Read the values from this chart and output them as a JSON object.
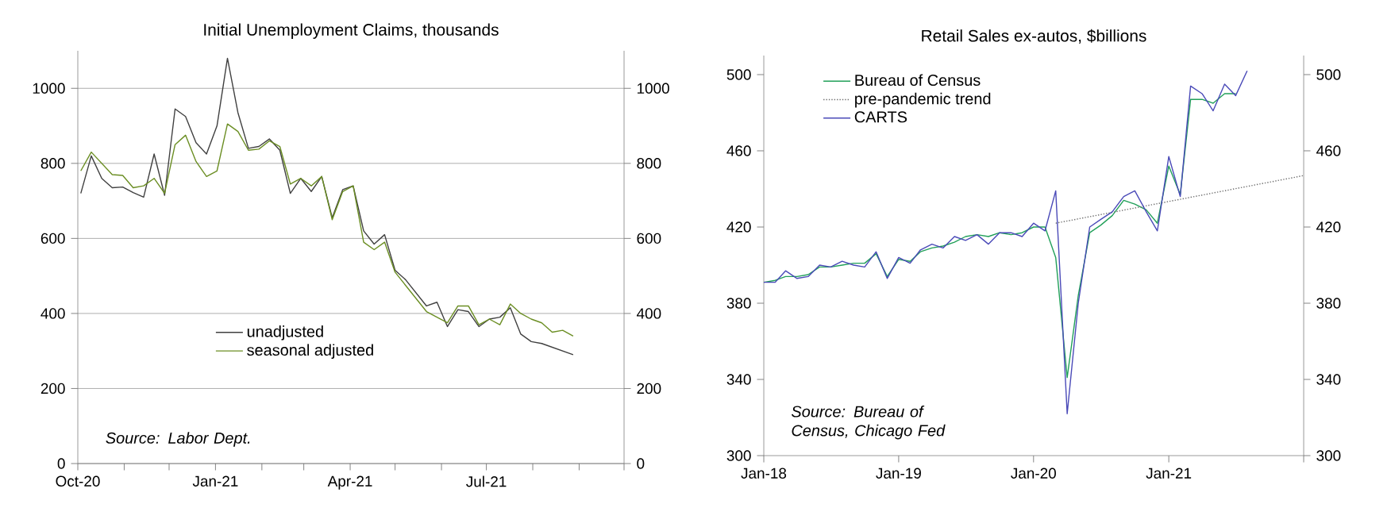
{
  "chart_data": [
    {
      "type": "line",
      "title": "Initial Unemployment Claims, thousands",
      "x": [
        "2020-10-03",
        "2020-10-10",
        "2020-10-17",
        "2020-10-24",
        "2020-10-31",
        "2020-11-07",
        "2020-11-14",
        "2020-11-21",
        "2020-11-28",
        "2020-12-05",
        "2020-12-12",
        "2020-12-19",
        "2020-12-26",
        "2021-01-02",
        "2021-01-09",
        "2021-01-16",
        "2021-01-23",
        "2021-01-30",
        "2021-02-06",
        "2021-02-13",
        "2021-02-20",
        "2021-02-27",
        "2021-03-06",
        "2021-03-13",
        "2021-03-20",
        "2021-03-27",
        "2021-04-03",
        "2021-04-10",
        "2021-04-17",
        "2021-04-24",
        "2021-05-01",
        "2021-05-08",
        "2021-05-15",
        "2021-05-22",
        "2021-05-29",
        "2021-06-05",
        "2021-06-12",
        "2021-06-19",
        "2021-06-26",
        "2021-07-03",
        "2021-07-10",
        "2021-07-17",
        "2021-07-24",
        "2021-07-31",
        "2021-08-07",
        "2021-08-14",
        "2021-08-21",
        "2021-08-28"
      ],
      "series": [
        {
          "name": "unadjusted",
          "color": "#404040",
          "values": [
            720,
            820,
            760,
            735,
            737,
            722,
            710,
            825,
            715,
            945,
            925,
            855,
            825,
            900,
            1080,
            935,
            840,
            845,
            865,
            835,
            720,
            760,
            725,
            765,
            655,
            730,
            740,
            620,
            585,
            610,
            515,
            490,
            455,
            420,
            430,
            365,
            410,
            405,
            365,
            385,
            390,
            415,
            345,
            325,
            320,
            310,
            300,
            290
          ]
        },
        {
          "name": "seasonal adjusted",
          "color": "#6b8e23",
          "values": [
            780,
            830,
            800,
            770,
            768,
            735,
            740,
            760,
            720,
            850,
            875,
            805,
            765,
            780,
            905,
            885,
            835,
            838,
            860,
            845,
            745,
            760,
            740,
            765,
            650,
            725,
            740,
            590,
            570,
            590,
            510,
            475,
            440,
            405,
            390,
            375,
            420,
            420,
            370,
            385,
            370,
            425,
            400,
            385,
            375,
            350,
            355,
            340
          ]
        }
      ],
      "xlim": [
        "2020-10-01",
        "2021-10-01"
      ],
      "xticks": [
        {
          "value": "2020-10-01",
          "label": "Oct-20"
        },
        {
          "value": "2020-11-01",
          "label": null
        },
        {
          "value": "2020-12-01",
          "label": null
        },
        {
          "value": "2021-01-01",
          "label": "Jan-21"
        },
        {
          "value": "2021-02-01",
          "label": null
        },
        {
          "value": "2021-03-01",
          "label": null
        },
        {
          "value": "2021-04-01",
          "label": "Apr-21"
        },
        {
          "value": "2021-05-01",
          "label": null
        },
        {
          "value": "2021-06-01",
          "label": null
        },
        {
          "value": "2021-07-01",
          "label": "Jul-21"
        },
        {
          "value": "2021-08-01",
          "label": null
        },
        {
          "value": "2021-09-01",
          "label": null
        },
        {
          "value": "2021-10-01",
          "label": null
        }
      ],
      "ylim": [
        0,
        1100
      ],
      "yticks": [
        0,
        200,
        400,
        600,
        800,
        1000
      ],
      "y2lim": [
        0,
        1100
      ],
      "y2ticks": [
        0,
        200,
        400,
        600,
        800,
        1000
      ],
      "grid": "y",
      "legend": "bottom",
      "marker": "none",
      "annotations": [
        "Source: Labor Dept."
      ]
    },
    {
      "type": "line",
      "title": "Retail Sales ex-autos, $billions",
      "series": [
        {
          "name": "Bureau of Census",
          "color": "#22a05a",
          "x": [
            "2018-01",
            "2018-02",
            "2018-03",
            "2018-04",
            "2018-05",
            "2018-06",
            "2018-07",
            "2018-08",
            "2018-09",
            "2018-10",
            "2018-11",
            "2018-12",
            "2019-01",
            "2019-02",
            "2019-03",
            "2019-04",
            "2019-05",
            "2019-06",
            "2019-07",
            "2019-08",
            "2019-09",
            "2019-10",
            "2019-11",
            "2019-12",
            "2020-01",
            "2020-02",
            "2020-03",
            "2020-04",
            "2020-05",
            "2020-06",
            "2020-07",
            "2020-08",
            "2020-09",
            "2020-10",
            "2020-11",
            "2020-12",
            "2021-01",
            "2021-02",
            "2021-03",
            "2021-04",
            "2021-05",
            "2021-06",
            "2021-07"
          ],
          "values": [
            391,
            392,
            394,
            394,
            395,
            399,
            399,
            400,
            401,
            401,
            406,
            394,
            403,
            402,
            407,
            409,
            410,
            412,
            415,
            416,
            415,
            417,
            416,
            417,
            420,
            420,
            404,
            341,
            384,
            417,
            421,
            426,
            434,
            432,
            429,
            422,
            452,
            437,
            487,
            487,
            485,
            490,
            490
          ]
        },
        {
          "name": "pre-pandemic trend",
          "color": "#707070",
          "line_style": "dotted",
          "x": [
            "2020-03",
            "2022-01"
          ],
          "values": [
            422,
            447
          ]
        },
        {
          "name": "CARTS",
          "color": "#4a4ab8",
          "x": [
            "2018-01",
            "2018-02",
            "2018-03",
            "2018-04",
            "2018-05",
            "2018-06",
            "2018-07",
            "2018-08",
            "2018-09",
            "2018-10",
            "2018-11",
            "2018-12",
            "2019-01",
            "2019-02",
            "2019-03",
            "2019-04",
            "2019-05",
            "2019-06",
            "2019-07",
            "2019-08",
            "2019-09",
            "2019-10",
            "2019-11",
            "2019-12",
            "2020-01",
            "2020-02",
            "2020-03",
            "2020-04",
            "2020-05",
            "2020-06",
            "2020-07",
            "2020-08",
            "2020-09",
            "2020-10",
            "2020-11",
            "2020-12",
            "2021-01",
            "2021-02",
            "2021-03",
            "2021-04",
            "2021-05",
            "2021-06",
            "2021-07",
            "2021-08"
          ],
          "values": [
            391,
            391,
            397,
            393,
            394,
            400,
            399,
            402,
            400,
            399,
            407,
            393,
            404,
            401,
            408,
            411,
            409,
            415,
            413,
            416,
            411,
            417,
            417,
            415,
            422,
            418,
            439,
            322,
            380,
            420,
            424,
            428,
            436,
            439,
            428,
            418,
            457,
            436,
            494,
            490,
            481,
            495,
            489,
            502
          ]
        }
      ],
      "xlim": [
        "2018-01",
        "2022-01"
      ],
      "xticks": [
        {
          "value": "2018-01",
          "label": "Jan-18"
        },
        {
          "value": "2019-01",
          "label": "Jan-19"
        },
        {
          "value": "2020-01",
          "label": "Jan-20"
        },
        {
          "value": "2021-01",
          "label": "Jan-21"
        },
        {
          "value": "2022-01",
          "label": null
        }
      ],
      "ylim": [
        300,
        510
      ],
      "yticks": [
        300,
        340,
        380,
        420,
        460,
        500
      ],
      "y2lim": [
        300,
        510
      ],
      "y2ticks": [
        300,
        340,
        380,
        420,
        460,
        500
      ],
      "legend": "top left",
      "marker": "none",
      "annotations": [
        "Source: Bureau of Census, Chicago Fed"
      ]
    }
  ]
}
